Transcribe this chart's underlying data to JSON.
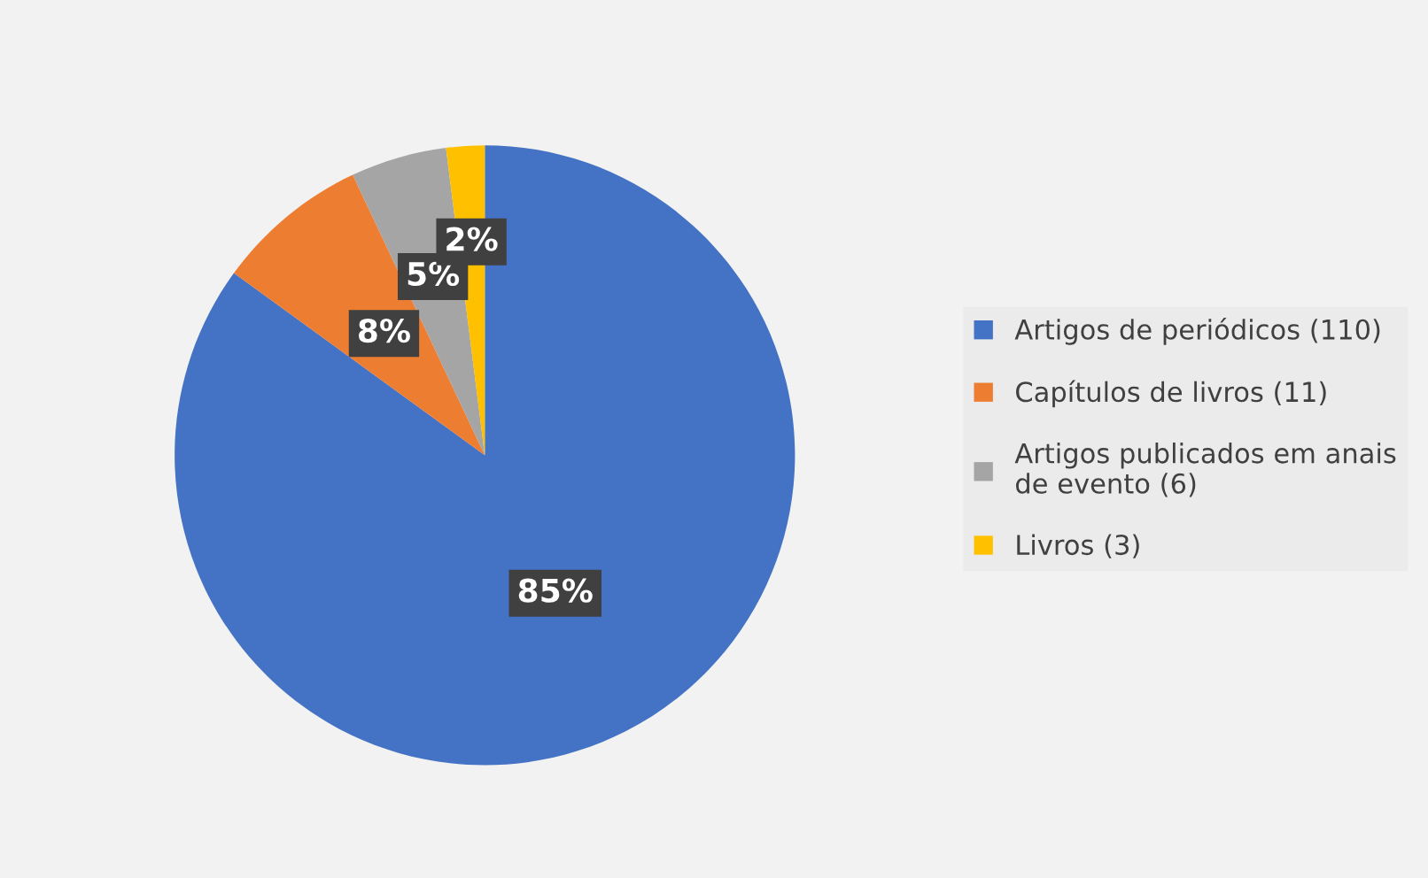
{
  "chart_data": {
    "type": "pie",
    "categories": [
      "Artigos de periódicos (110)",
      "Capítulos de livros (11)",
      "Artigos publicados em anais de evento (6)",
      "Livros (3)"
    ],
    "values": [
      85,
      8,
      5,
      2
    ],
    "colors": [
      "#4472c4",
      "#ed7d31",
      "#a5a5a5",
      "#ffc000"
    ],
    "value_labels": [
      "85%",
      "8%",
      "5%",
      "2%"
    ],
    "legend": "right"
  }
}
